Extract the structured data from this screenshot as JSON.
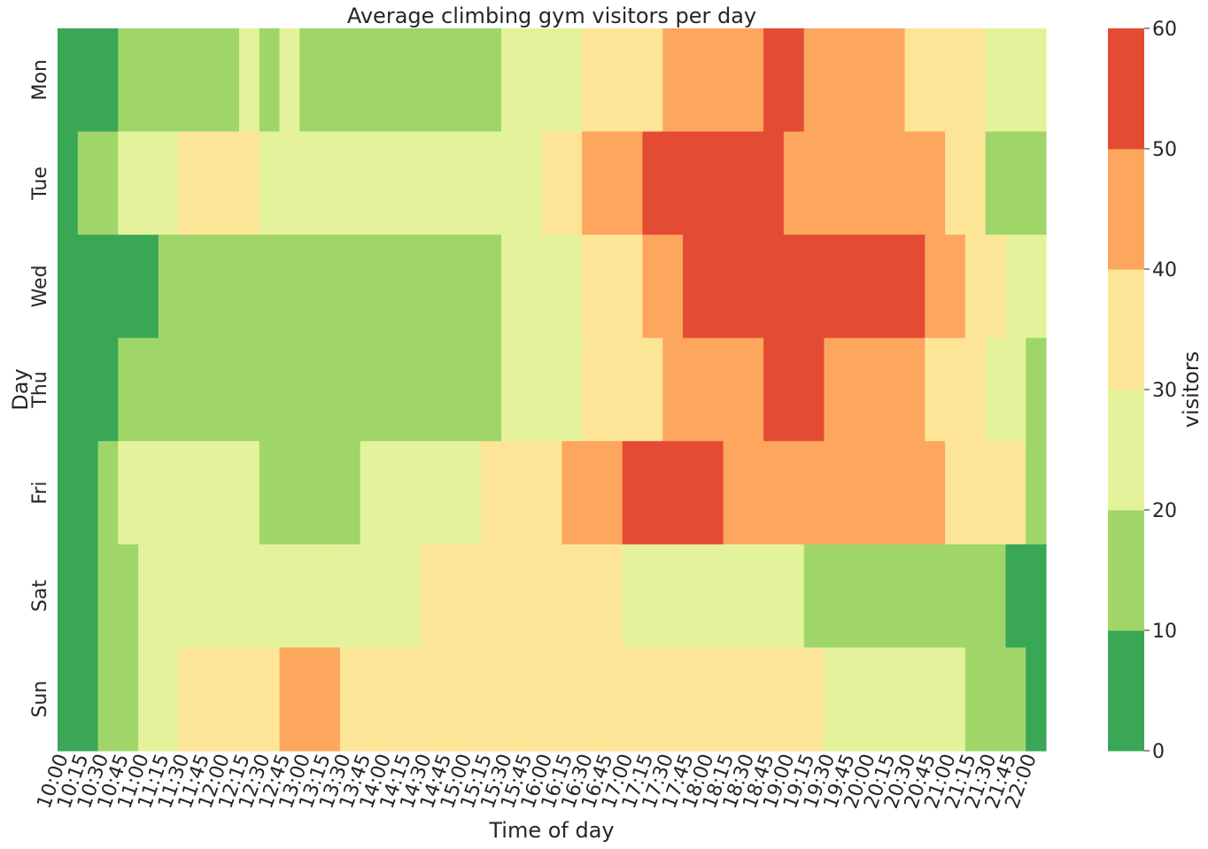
{
  "chart_data": {
    "type": "heatmap",
    "title": "Average climbing gym visitors per day",
    "xlabel": "Time of day",
    "ylabel": "Day",
    "colorbar_label": "visitors",
    "color_range": [
      0,
      60
    ],
    "colorbar_ticks": [
      "0",
      "10",
      "20",
      "30",
      "40",
      "50",
      "60"
    ],
    "bins": [
      {
        "min": 0,
        "max": 10,
        "color": "#3aa757"
      },
      {
        "min": 10,
        "max": 20,
        "color": "#a0d669"
      },
      {
        "min": 20,
        "max": 30,
        "color": "#e4f39b"
      },
      {
        "min": 30,
        "max": 40,
        "color": "#fde597"
      },
      {
        "min": 40,
        "max": 50,
        "color": "#fda65d"
      },
      {
        "min": 50,
        "max": 60,
        "color": "#e44b33"
      }
    ],
    "rows": [
      "Mon",
      "Tue",
      "Wed",
      "Thu",
      "Fri",
      "Sat",
      "Sun"
    ],
    "columns": [
      "10:00",
      "10:15",
      "10:30",
      "10:45",
      "11:00",
      "11:15",
      "11:30",
      "11:45",
      "12:00",
      "12:15",
      "12:30",
      "12:45",
      "13:00",
      "13:15",
      "13:30",
      "13:45",
      "14:00",
      "14:15",
      "14:30",
      "14:45",
      "15:00",
      "15:15",
      "15:30",
      "15:45",
      "16:00",
      "16:15",
      "16:30",
      "16:45",
      "17:00",
      "17:15",
      "17:30",
      "17:45",
      "18:00",
      "18:15",
      "18:30",
      "18:45",
      "19:00",
      "19:15",
      "19:30",
      "19:45",
      "20:00",
      "20:15",
      "20:30",
      "20:45",
      "21:00",
      "21:15",
      "21:30",
      "21:45",
      "22:00"
    ],
    "values": [
      [
        5,
        5,
        5,
        15,
        15,
        15,
        15,
        15,
        15,
        25,
        15,
        25,
        15,
        15,
        15,
        15,
        15,
        15,
        15,
        15,
        15,
        15,
        25,
        25,
        25,
        25,
        35,
        35,
        35,
        35,
        45,
        45,
        45,
        45,
        45,
        55,
        55,
        45,
        45,
        45,
        45,
        45,
        35,
        35,
        35,
        35,
        25,
        25,
        25
      ],
      [
        5,
        15,
        15,
        25,
        25,
        25,
        35,
        35,
        35,
        35,
        25,
        25,
        25,
        25,
        25,
        25,
        25,
        25,
        25,
        25,
        25,
        25,
        25,
        25,
        35,
        35,
        45,
        45,
        45,
        55,
        55,
        55,
        55,
        55,
        55,
        55,
        45,
        45,
        45,
        45,
        45,
        45,
        45,
        45,
        35,
        35,
        15,
        15,
        15
      ],
      [
        5,
        5,
        5,
        5,
        5,
        15,
        15,
        15,
        15,
        15,
        15,
        15,
        15,
        15,
        15,
        15,
        15,
        15,
        15,
        15,
        15,
        15,
        25,
        25,
        25,
        25,
        35,
        35,
        35,
        45,
        45,
        55,
        55,
        55,
        55,
        55,
        55,
        55,
        55,
        55,
        55,
        55,
        55,
        45,
        45,
        35,
        35,
        25,
        25
      ],
      [
        5,
        5,
        5,
        15,
        15,
        15,
        15,
        15,
        15,
        15,
        15,
        15,
        15,
        15,
        15,
        15,
        15,
        15,
        15,
        15,
        15,
        15,
        25,
        25,
        25,
        25,
        35,
        35,
        35,
        35,
        45,
        45,
        45,
        45,
        45,
        55,
        55,
        55,
        45,
        45,
        45,
        45,
        45,
        35,
        35,
        35,
        25,
        25,
        15
      ],
      [
        5,
        5,
        15,
        25,
        25,
        25,
        25,
        25,
        25,
        25,
        15,
        15,
        15,
        15,
        15,
        25,
        25,
        25,
        25,
        25,
        25,
        35,
        35,
        35,
        35,
        45,
        45,
        45,
        55,
        55,
        55,
        55,
        55,
        45,
        45,
        45,
        45,
        45,
        45,
        45,
        45,
        45,
        45,
        45,
        35,
        35,
        35,
        35,
        15
      ],
      [
        5,
        5,
        15,
        15,
        25,
        25,
        25,
        25,
        25,
        25,
        25,
        25,
        25,
        25,
        25,
        25,
        25,
        25,
        35,
        35,
        35,
        35,
        35,
        35,
        35,
        35,
        35,
        35,
        25,
        25,
        25,
        25,
        25,
        25,
        25,
        25,
        25,
        15,
        15,
        15,
        15,
        15,
        15,
        15,
        15,
        15,
        15,
        5,
        5
      ],
      [
        5,
        5,
        15,
        15,
        25,
        25,
        35,
        35,
        35,
        35,
        35,
        45,
        45,
        45,
        35,
        35,
        35,
        35,
        35,
        35,
        35,
        35,
        35,
        35,
        35,
        35,
        35,
        35,
        35,
        35,
        35,
        35,
        35,
        35,
        35,
        35,
        35,
        35,
        25,
        25,
        25,
        25,
        25,
        25,
        25,
        15,
        15,
        15,
        5
      ]
    ]
  }
}
